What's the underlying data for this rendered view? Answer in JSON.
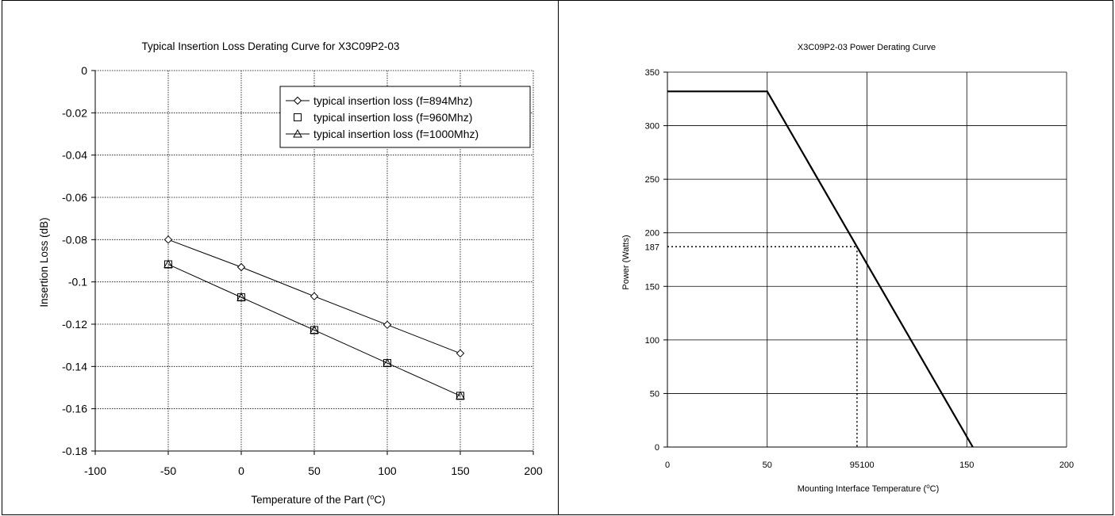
{
  "chart_data": [
    {
      "type": "line",
      "title": "Typical Insertion Loss Derating Curve for X3C09P2-03",
      "xlabel": "Temperature of the Part (",
      "xlabel_sup": "o",
      "xlabel_tail": "C)",
      "ylabel": "Insertion Loss (dB)",
      "xlim": [
        -100,
        200
      ],
      "ylim": [
        -0.18,
        0
      ],
      "xticks": [
        -100,
        -50,
        0,
        50,
        100,
        150,
        200
      ],
      "xtick_labels": [
        "-100",
        "-50",
        "0",
        "50",
        "100",
        "150",
        "200"
      ],
      "yticks": [
        0,
        -0.02,
        -0.04,
        -0.06,
        -0.08,
        -0.1,
        -0.12,
        -0.14,
        -0.16,
        -0.18
      ],
      "ytick_labels": [
        "0",
        "-0.02",
        "-0.04",
        "-0.06",
        "-0.08",
        "-0.1",
        "-0.12",
        "-0.14",
        "-0.16",
        "-0.18"
      ],
      "grid": true,
      "legend_position": "top-right",
      "series": [
        {
          "name": "typical insertion loss (f=894Mhz)",
          "marker": "diamond",
          "line": true,
          "x": [
            -50,
            0,
            50,
            100,
            150
          ],
          "y": [
            -0.08,
            -0.093,
            -0.1068,
            -0.1203,
            -0.1338
          ]
        },
        {
          "name": "typical insertion loss (f=960Mhz)",
          "marker": "square",
          "line": false,
          "x": [
            -50,
            0,
            50,
            100,
            150
          ],
          "y": [
            -0.0917,
            -0.1073,
            -0.1228,
            -0.1384,
            -0.1539
          ]
        },
        {
          "name": "typical insertion loss (f=1000Mhz)",
          "marker": "triangle",
          "line": true,
          "x": [
            -50,
            0,
            50,
            100,
            150
          ],
          "y": [
            -0.0917,
            -0.1073,
            -0.1228,
            -0.1384,
            -0.1539
          ]
        }
      ]
    },
    {
      "type": "line",
      "title": "X3C09P2-03 Power Derating Curve",
      "xlabel": "Mounting Interface Temperature (",
      "xlabel_sup": "o",
      "xlabel_tail": "C)",
      "ylabel": "Power (Watts)",
      "xlim": [
        0,
        200
      ],
      "ylim": [
        0,
        350
      ],
      "xticks": [
        0,
        50,
        100,
        150,
        200
      ],
      "xtick_labels": [
        "0",
        "50",
        "100",
        "150",
        "200"
      ],
      "yticks": [
        0,
        50,
        100,
        150,
        200,
        250,
        300,
        350
      ],
      "ytick_labels": [
        "0",
        "50",
        "100",
        "150",
        "200",
        "250",
        "300",
        "350"
      ],
      "grid": true,
      "series": [
        {
          "x": [
            0,
            50,
            153
          ],
          "y": [
            332,
            332,
            0
          ]
        }
      ],
      "annotation": {
        "x": 95,
        "y": 187,
        "x_label": "95",
        "y_label": "187"
      }
    }
  ]
}
